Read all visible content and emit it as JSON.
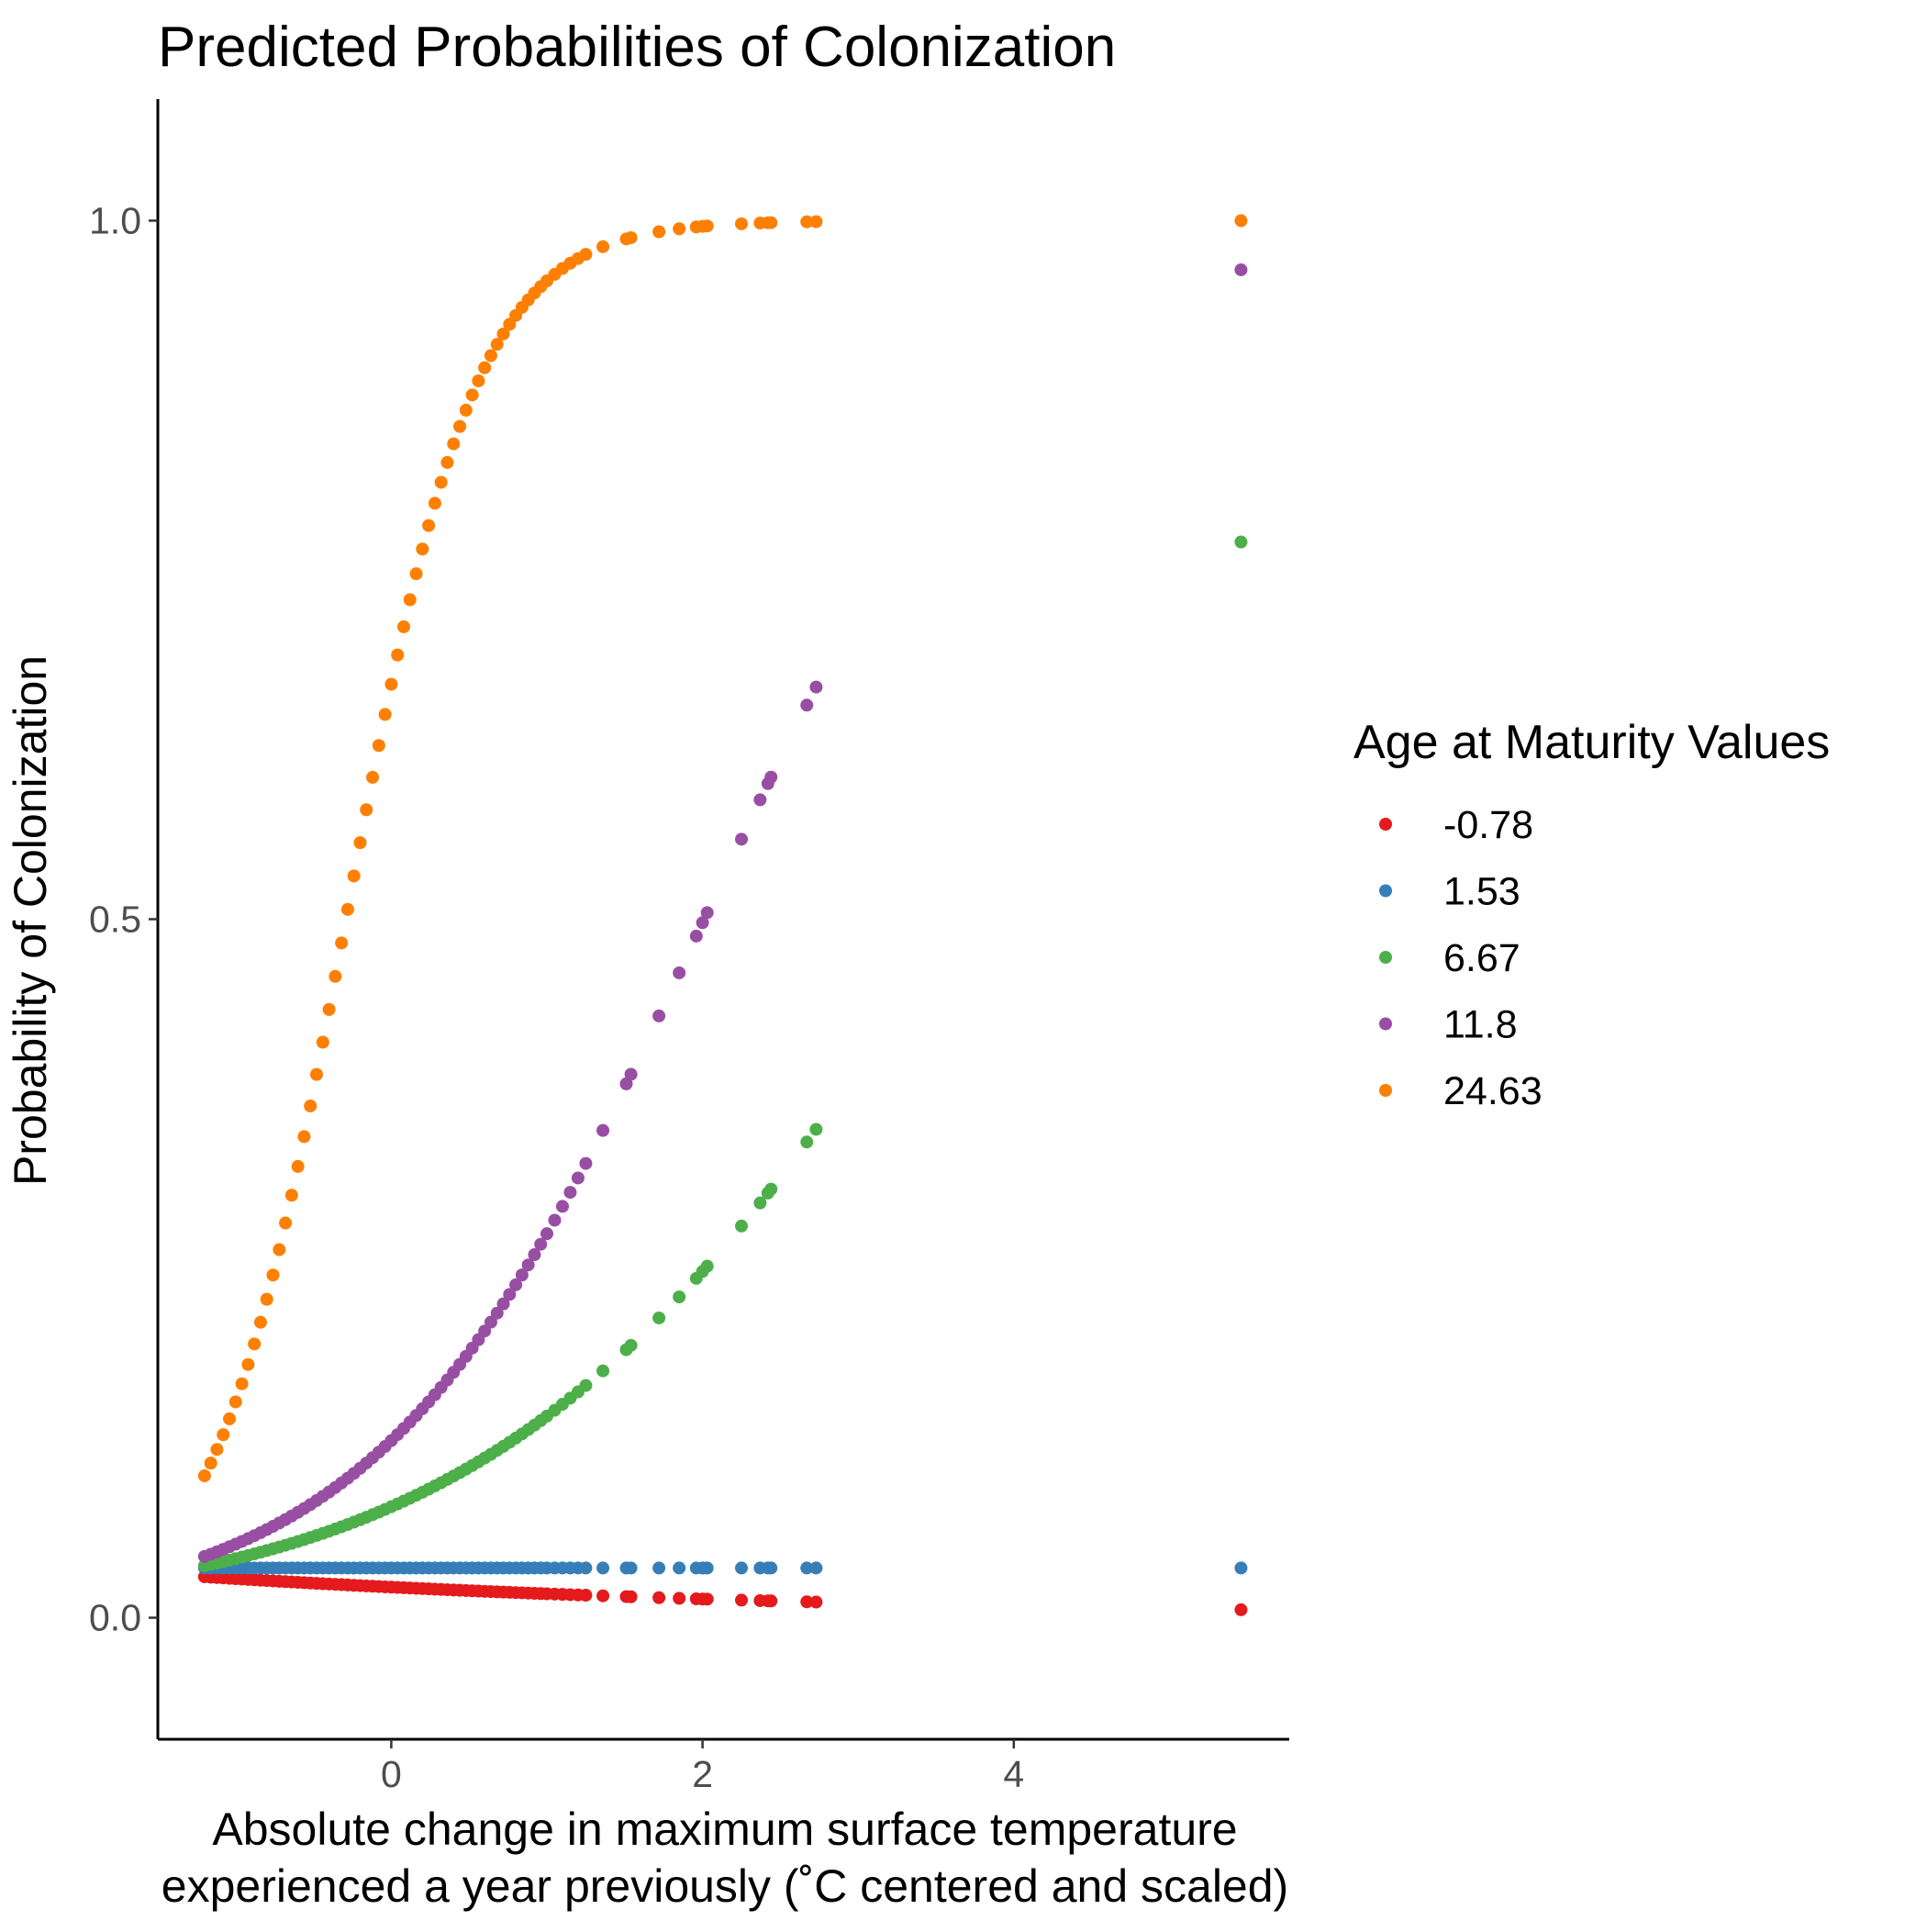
{
  "chart_data": {
    "type": "scatter",
    "title": "Predicted Probabilities of Colonization",
    "xlabel_lines": [
      "Absolute change in maximum surface temperature",
      "experienced a year previously (˚C centered and scaled)"
    ],
    "ylabel": "Probability of Colonization",
    "xlim": [
      -1.5,
      5.77
    ],
    "ylim": [
      -0.087,
      1.087
    ],
    "x_ticks": [
      0,
      2,
      4
    ],
    "x_tick_labels": [
      "0",
      "2",
      "4"
    ],
    "y_ticks": [
      0.0,
      0.5,
      1.0
    ],
    "y_tick_labels": [
      "0.0",
      "0.5",
      "1.0"
    ],
    "grid": false,
    "legend": {
      "title": "Age at Maturity Values",
      "position": "right"
    },
    "x_sample_points": [
      -1.2,
      -1.16,
      -1.12,
      -1.08,
      -1.04,
      -1.0,
      -0.96,
      -0.92,
      -0.88,
      -0.84,
      -0.8,
      -0.76,
      -0.72,
      -0.68,
      -0.64,
      -0.6,
      -0.56,
      -0.52,
      -0.48,
      -0.44,
      -0.4,
      -0.36,
      -0.32,
      -0.28,
      -0.24,
      -0.2,
      -0.16,
      -0.12,
      -0.08,
      -0.04,
      0.0,
      0.04,
      0.08,
      0.12,
      0.16,
      0.2,
      0.24,
      0.28,
      0.32,
      0.36,
      0.4,
      0.44,
      0.48,
      0.52,
      0.56,
      0.6,
      0.64,
      0.68,
      0.72,
      0.76,
      0.8,
      0.84,
      0.88,
      0.92,
      0.96,
      1.0,
      1.05,
      1.1,
      1.15,
      1.2,
      1.25,
      1.36,
      1.51,
      1.54,
      1.72,
      1.85,
      1.96,
      2.0,
      2.03,
      2.25,
      2.37,
      2.42,
      2.44,
      2.67,
      2.73,
      5.46
    ],
    "series": [
      {
        "name": "-0.78",
        "color": "#e41a1c",
        "logit_a": -3.8,
        "logit_b": -0.25
      },
      {
        "name": "1.53",
        "color": "#377eb8",
        "logit_a": -3.3,
        "logit_b": 0.0
      },
      {
        "name": "6.67",
        "color": "#4daf4a",
        "logit_a": -2.45,
        "logit_b": 0.67
      },
      {
        "name": "11.8",
        "color": "#984ea3",
        "logit_a": -1.93,
        "logit_b": 0.96
      },
      {
        "name": "24.63",
        "color": "#ff7f00",
        "logit_a": 0.7,
        "logit_b": 2.4
      }
    ]
  }
}
